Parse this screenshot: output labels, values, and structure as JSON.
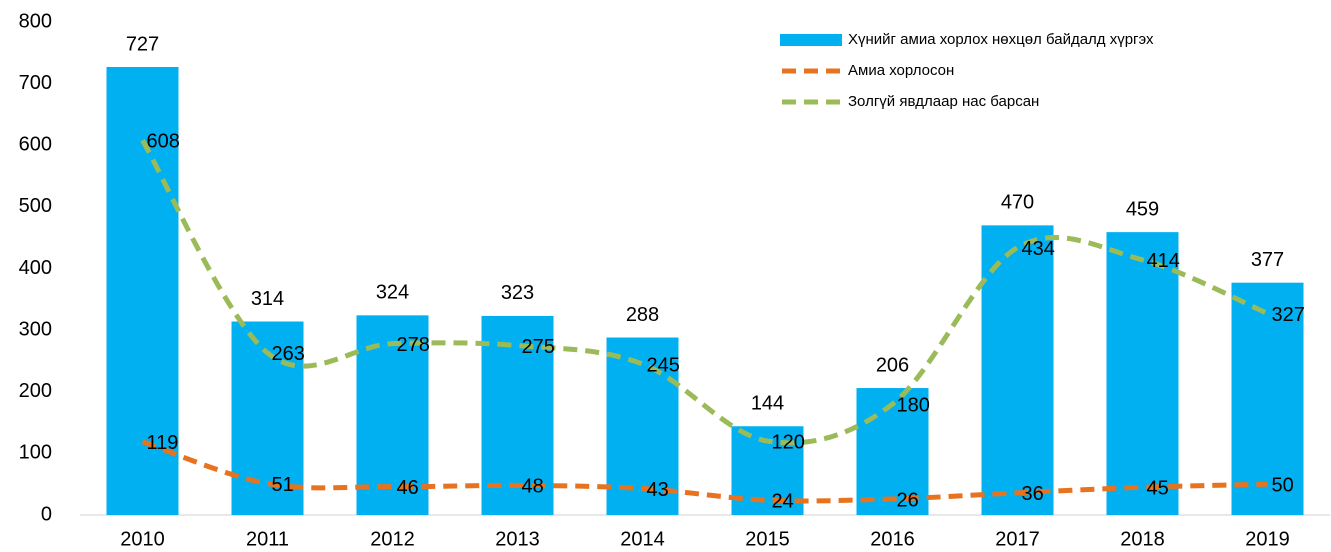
{
  "chart_data": {
    "type": "bar",
    "categories": [
      "2010",
      "2011",
      "2012",
      "2013",
      "2014",
      "2015",
      "2016",
      "2017",
      "2018",
      "2019"
    ],
    "series": [
      {
        "name": "Хүнийг амиа хорлох нөхцөл байдалд хүргэх",
        "type": "bar",
        "color": "#00b0f0",
        "values": [
          727,
          314,
          324,
          323,
          288,
          144,
          206,
          470,
          459,
          377
        ]
      },
      {
        "name": "Амиа хорлосон",
        "type": "line",
        "smooth": true,
        "dashed": true,
        "color": "#e8731f",
        "values": [
          119,
          51,
          46,
          48,
          43,
          24,
          26,
          36,
          45,
          50
        ]
      },
      {
        "name": "Золгүй явдлаар нас барсан",
        "type": "line",
        "smooth": true,
        "dashed": true,
        "color": "#9bbb59",
        "values": [
          608,
          263,
          278,
          275,
          245,
          120,
          180,
          434,
          414,
          327
        ]
      }
    ],
    "ylim": [
      0,
      800
    ],
    "yticks": [
      0,
      100,
      200,
      300,
      400,
      500,
      600,
      700,
      800
    ],
    "grid": false,
    "legend": "top-right"
  }
}
